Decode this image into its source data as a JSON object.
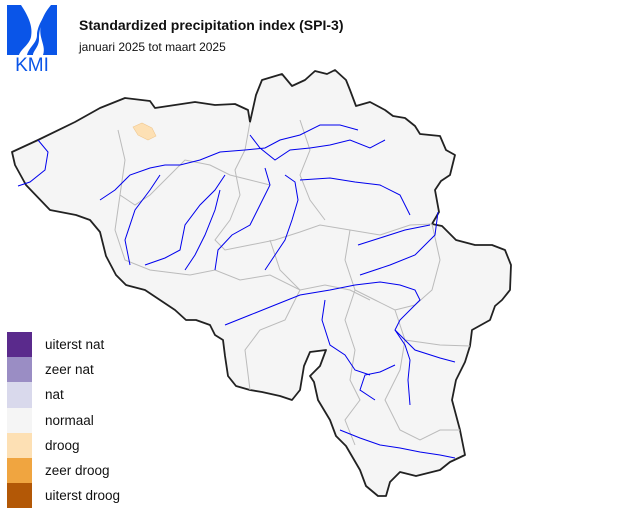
{
  "logo": {
    "text": "KMI",
    "color": "#0a55e8"
  },
  "header": {
    "title": "Standardized precipitation index (SPI-3)",
    "subtitle": "januari 2025 tot maart 2025"
  },
  "map": {
    "country_fill": "#f5f5f5",
    "border_color": "#222222",
    "river_color": "#0000ee",
    "province_color": "#bbbbbb",
    "highlight_class": "droog"
  },
  "legend": {
    "items": [
      {
        "label": "uiterst nat",
        "color": "#5a2a8c"
      },
      {
        "label": "zeer nat",
        "color": "#9a8dc4"
      },
      {
        "label": "nat",
        "color": "#d9d9ec"
      },
      {
        "label": "normaal",
        "color": "#f5f5f5"
      },
      {
        "label": "droog",
        "color": "#fde0b4"
      },
      {
        "label": "zeer droog",
        "color": "#f0a540"
      },
      {
        "label": "uiterst droog",
        "color": "#b35806"
      }
    ]
  }
}
